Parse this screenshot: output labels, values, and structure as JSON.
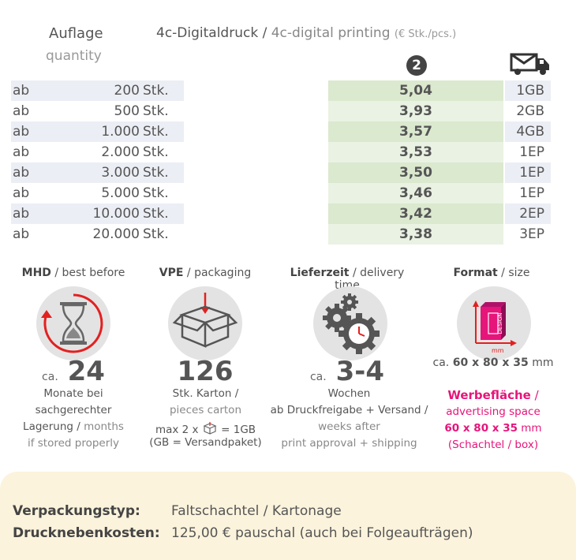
{
  "header": {
    "quantity_de": "Auflage",
    "quantity_en": "quantity",
    "title_de": "4c-Digitaldruck",
    "title_sep": " / ",
    "title_en": "4c-digital printing",
    "title_unit": "(€ Stk./pcs.)",
    "badge": "2",
    "shipping_icon": "truck-mail-icon"
  },
  "rows": [
    {
      "ab": "ab",
      "qty": "200",
      "unit": "Stk.",
      "price": "5,04",
      "ship": "1GB"
    },
    {
      "ab": "ab",
      "qty": "500",
      "unit": "Stk.",
      "price": "3,93",
      "ship": "2GB"
    },
    {
      "ab": "ab",
      "qty": "1.000",
      "unit": "Stk.",
      "price": "3,57",
      "ship": "4GB"
    },
    {
      "ab": "ab",
      "qty": "2.000",
      "unit": "Stk.",
      "price": "3,53",
      "ship": "1EP"
    },
    {
      "ab": "ab",
      "qty": "3.000",
      "unit": "Stk.",
      "price": "3,50",
      "ship": "1EP"
    },
    {
      "ab": "ab",
      "qty": "5.000",
      "unit": "Stk.",
      "price": "3,46",
      "ship": "1EP"
    },
    {
      "ab": "ab",
      "qty": "10.000",
      "unit": "Stk.",
      "price": "3,42",
      "ship": "2EP"
    },
    {
      "ab": "ab",
      "qty": "20.000",
      "unit": "Stk.",
      "price": "3,38",
      "ship": "3EP"
    }
  ],
  "info": {
    "mhd": {
      "title_de": "MHD",
      "title_en": "best before",
      "icon": "hourglass-icon",
      "ca": "ca.",
      "value": "24",
      "desc_1": "Monate bei",
      "desc_2": "sachgerechter",
      "desc_3_de": "Lagerung",
      "desc_3_en": "months",
      "desc_4": "if stored properly"
    },
    "vpe": {
      "title_de": "VPE",
      "title_en": "packaging",
      "icon": "box-icon",
      "value": "126",
      "desc_1": "Stk. Karton /",
      "desc_2": "pieces carton",
      "desc_3a": "max 2 x",
      "desc_3b": "= 1GB",
      "desc_4": "(GB = Versandpaket)"
    },
    "lieferzeit": {
      "title_de": "Lieferzeit",
      "title_en": "delivery time",
      "icon": "gears-clock-icon",
      "ca": "ca.",
      "value": "3-4",
      "desc_1": "Wochen",
      "desc_2": "ab Druckfreigabe + Versand /",
      "desc_3": "weeks after",
      "desc_4": "print approval + shipping"
    },
    "format": {
      "title_de": "Format",
      "title_en": "size",
      "icon": "design-box-icon",
      "icon_label": "DESIGN",
      "icon_unit": "mm",
      "ca": "ca.",
      "value": "60 x 80 x 35",
      "unit": "mm",
      "ad_de": "Werbefläche",
      "ad_en": "advertising space",
      "ad_value": "60 x 80 x 35",
      "ad_unit": "mm",
      "ad_note": "(Schachtel / box)"
    }
  },
  "footer": {
    "packaging_label": "Verpackungstyp:",
    "packaging_value": "Faltschachtel / Kartonage",
    "costs_label": "Drucknebenkosten:",
    "costs_value": "125,00 € pauschal (auch bei Folgeaufträgen)"
  },
  "colors": {
    "accent_pink": "#e5157a",
    "price_dark": "#dbe9cf",
    "price_light": "#eaf2e3",
    "qty_shade": "#eceef5",
    "footer_bg": "#fbf3dc"
  }
}
